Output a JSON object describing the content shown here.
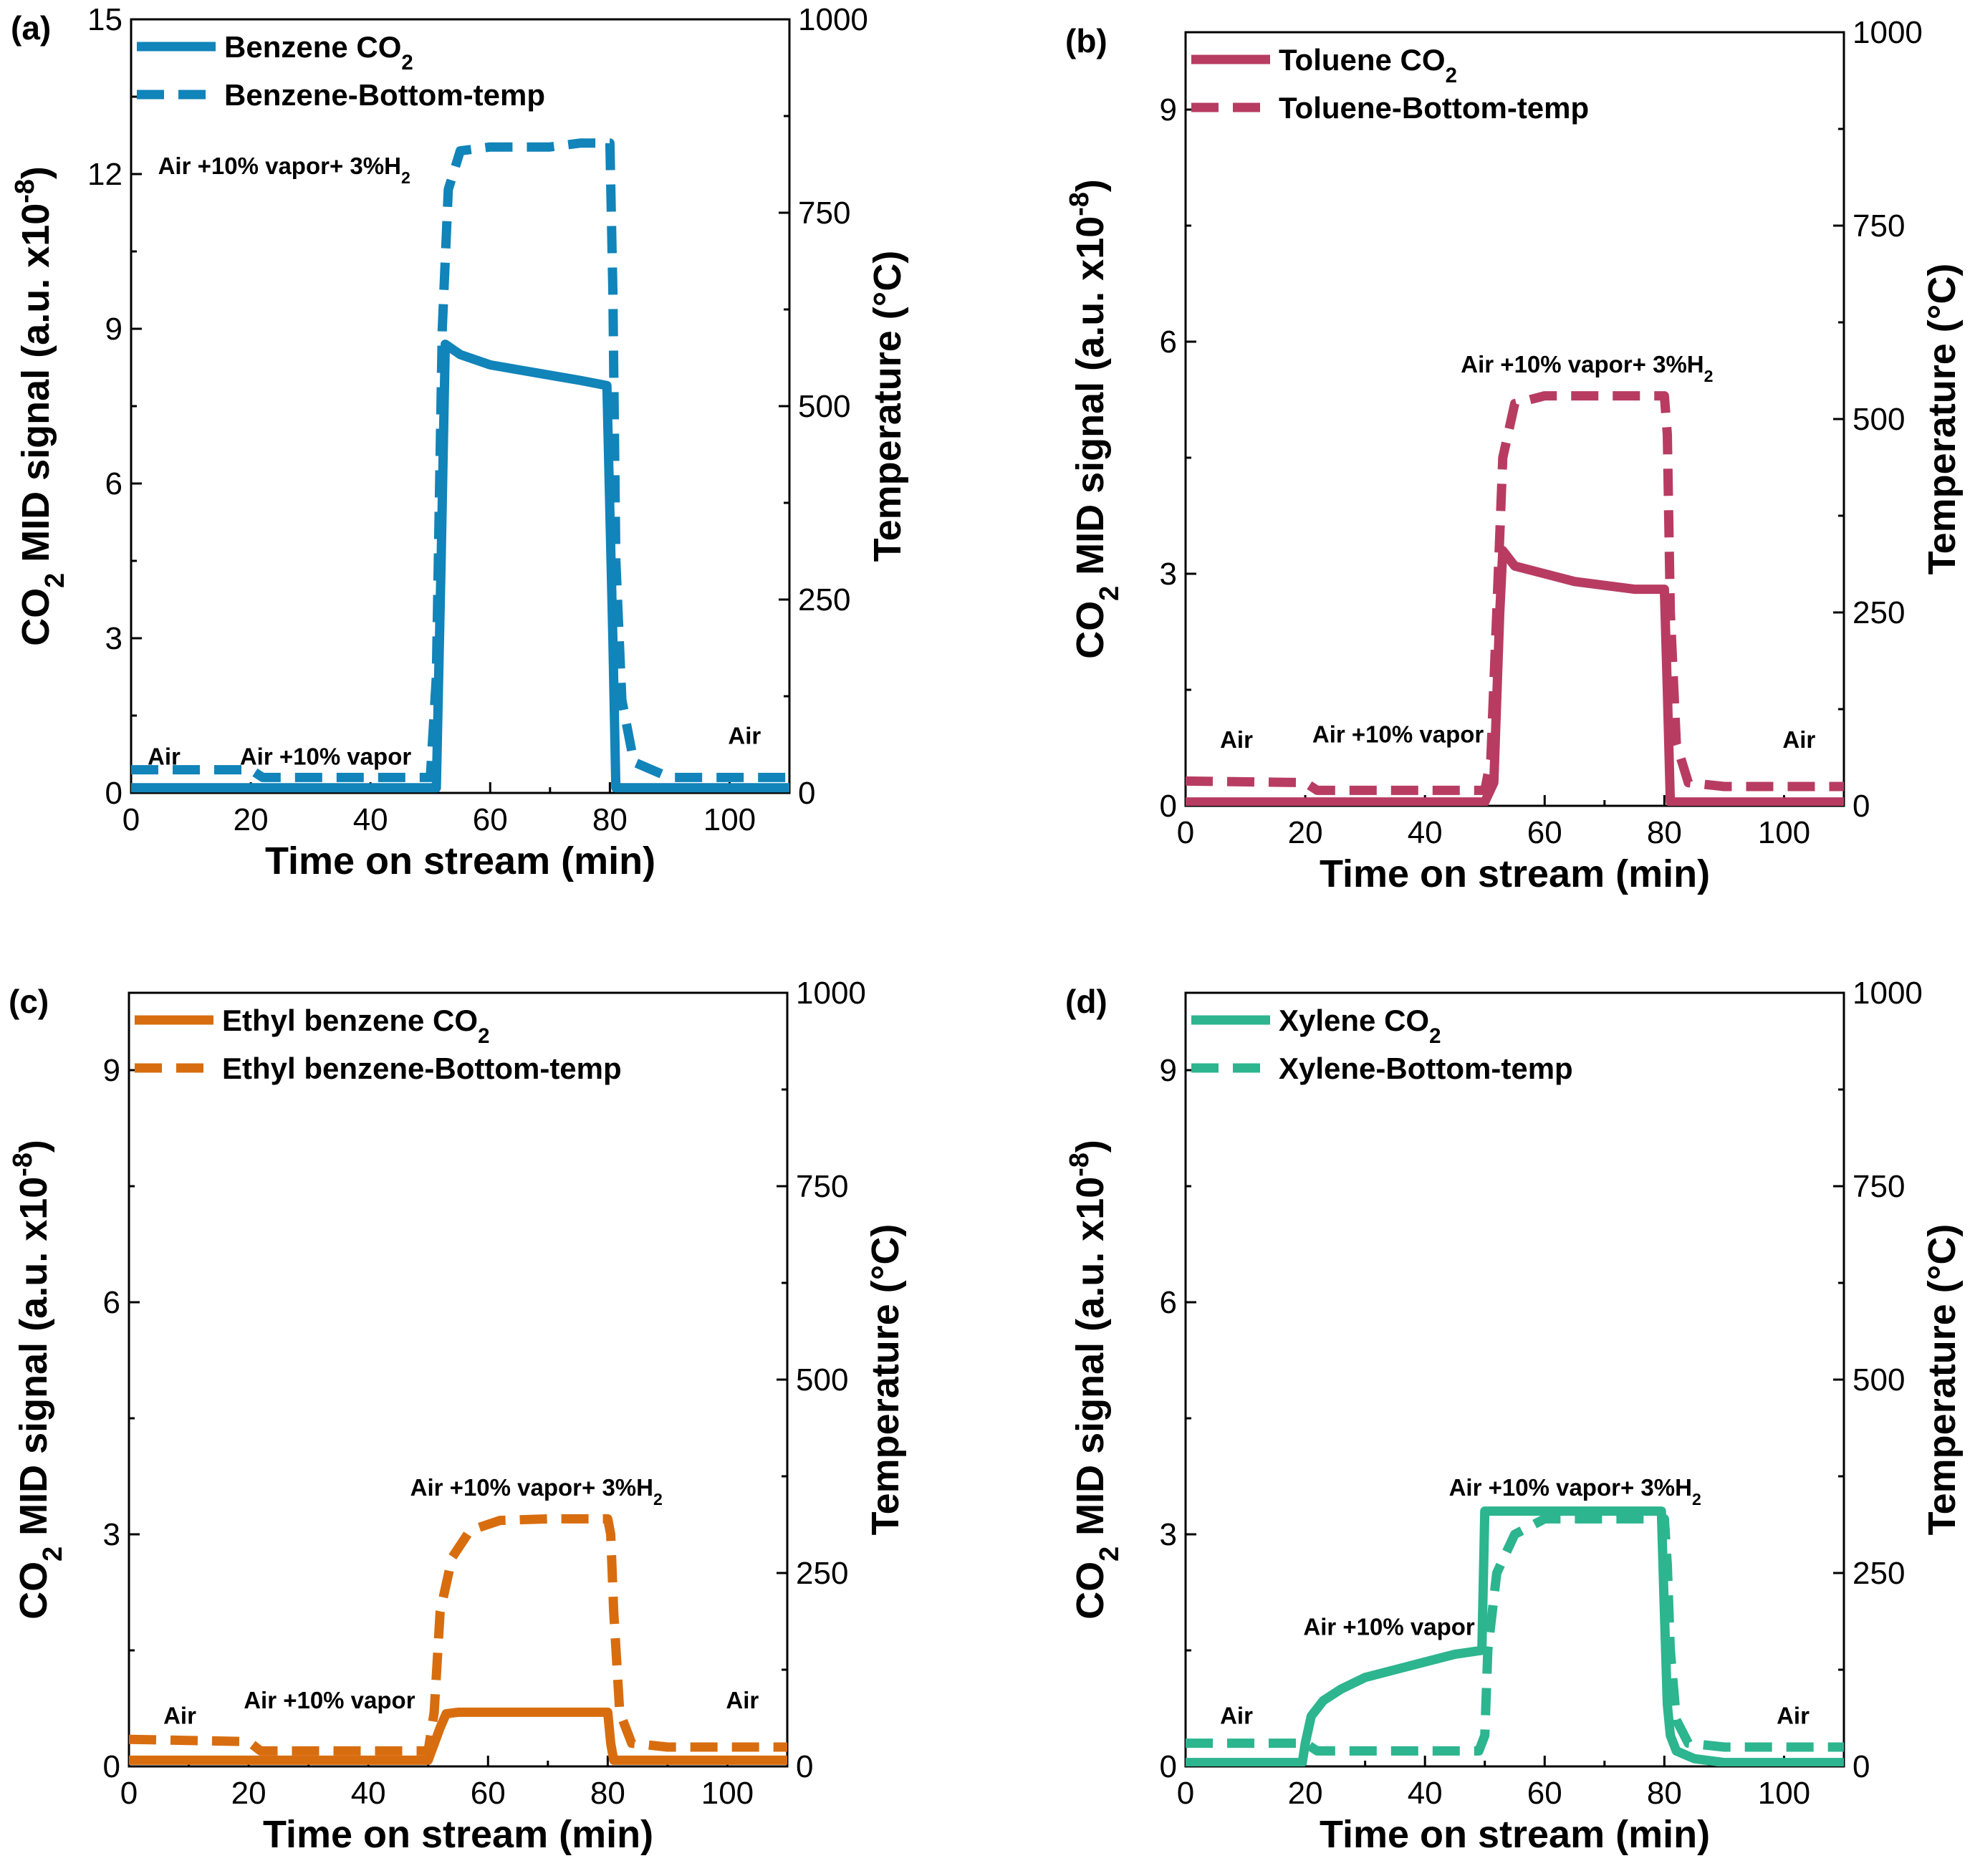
{
  "chart_data": [
    {
      "type": "line",
      "panel_label": "(a)",
      "color": "#1184b9",
      "xlabel": "Time on stream (min)",
      "ylabel_left": "CO2 MID signal (a.u. x10-8)",
      "ylabel_right": "Temperature (°C)",
      "xlim": [
        0,
        110
      ],
      "ylim_left": [
        0,
        15
      ],
      "ylim_right": [
        0,
        1000
      ],
      "xticks": [
        "0",
        "20",
        "40",
        "60",
        "80",
        "100"
      ],
      "yticks_left": [
        "0",
        "3",
        "6",
        "9",
        "12",
        "15"
      ],
      "yticks_right": [
        "0",
        "250",
        "500",
        "750",
        "1000"
      ],
      "legend_co2": "Benzene CO",
      "legend_temp": "Benzene-Bottom-temp",
      "annotations": {
        "air_start": "Air",
        "vapor": "Air +10% vapor",
        "h2": "Air +10% vapor+ 3%H",
        "air_end": "Air"
      },
      "series": [
        {
          "name": "Benzene CO2",
          "axis": "left",
          "style": "solid",
          "x": [
            0,
            51,
            51.8,
            52.5,
            55,
            60,
            65,
            70,
            75,
            79.5,
            80.5,
            81,
            110
          ],
          "y": [
            0.1,
            0.1,
            4.5,
            8.7,
            8.5,
            8.3,
            8.2,
            8.1,
            8.0,
            7.9,
            3.0,
            0.1,
            0.1
          ]
        },
        {
          "name": "Benzene-Bottom-temp",
          "axis": "right",
          "style": "dashed",
          "x": [
            0,
            20,
            22,
            50,
            51,
            52,
            53,
            55,
            60,
            70,
            75,
            80,
            80.5,
            81,
            82,
            84,
            90,
            110
          ],
          "y": [
            30,
            30,
            20,
            20,
            150,
            600,
            780,
            830,
            835,
            835,
            840,
            840,
            650,
            300,
            120,
            40,
            20,
            20
          ]
        }
      ]
    },
    {
      "type": "line",
      "panel_label": "(b)",
      "color": "#b83c62",
      "xlabel": "Time on stream (min)",
      "ylabel_left": "CO2 MID signal (a.u. x10-8)",
      "ylabel_right": "Temperature (°C)",
      "xlim": [
        0,
        110
      ],
      "ylim_left": [
        0,
        10
      ],
      "ylim_right": [
        0,
        1000
      ],
      "xticks": [
        "0",
        "20",
        "40",
        "60",
        "80",
        "100"
      ],
      "yticks_left": [
        "0",
        "3",
        "6",
        "9"
      ],
      "yticks_right": [
        "0",
        "250",
        "500",
        "750",
        "1000"
      ],
      "legend_co2": "Toluene CO",
      "legend_temp": "Toluene-Bottom-temp",
      "annotations": {
        "air_start": "Air",
        "vapor": "Air +10% vapor",
        "h2": "Air +10% vapor+ 3%H",
        "air_end": "Air"
      },
      "series": [
        {
          "name": "Toluene CO2",
          "axis": "left",
          "style": "solid",
          "x": [
            0,
            50,
            51.5,
            52.5,
            53,
            55,
            60,
            65,
            70,
            75,
            80,
            80.5,
            81,
            110
          ],
          "y": [
            0.05,
            0.05,
            0.3,
            2.5,
            3.3,
            3.1,
            3.0,
            2.9,
            2.85,
            2.8,
            2.8,
            1.5,
            0.05,
            0.05
          ]
        },
        {
          "name": "Toluene-Bottom-temp",
          "axis": "right",
          "style": "dashed",
          "x": [
            0,
            20,
            22,
            50,
            51,
            52,
            53,
            55,
            60,
            70,
            80,
            80.5,
            81,
            82,
            84,
            90,
            110
          ],
          "y": [
            32,
            30,
            20,
            20,
            60,
            250,
            450,
            520,
            530,
            530,
            530,
            480,
            250,
            80,
            30,
            25,
            25
          ]
        }
      ]
    },
    {
      "type": "line",
      "panel_label": "(c)",
      "color": "#d86d0f",
      "xlabel": "Time on stream (min)",
      "ylabel_left": "CO2 MID signal (a.u. x10-8)",
      "ylabel_right": "Temperature (°C)",
      "xlim": [
        0,
        110
      ],
      "ylim_left": [
        0,
        10
      ],
      "ylim_right": [
        0,
        1000
      ],
      "xticks": [
        "0",
        "20",
        "40",
        "60",
        "80",
        "100"
      ],
      "yticks_left": [
        "0",
        "3",
        "6",
        "9"
      ],
      "yticks_right": [
        "0",
        "250",
        "500",
        "750",
        "1000"
      ],
      "legend_co2": "Ethyl benzene CO",
      "legend_temp": "Ethyl benzene-Bottom-temp",
      "annotations": {
        "air_start": "Air",
        "vapor": "Air +10% vapor",
        "h2": "Air +10% vapor+ 3%H",
        "air_end": "Air"
      },
      "series": [
        {
          "name": "Ethyl benzene CO2",
          "axis": "left",
          "style": "solid",
          "x": [
            0,
            50,
            52,
            53,
            55,
            60,
            70,
            80,
            80.5,
            81,
            110
          ],
          "y": [
            0.08,
            0.08,
            0.5,
            0.68,
            0.7,
            0.7,
            0.7,
            0.7,
            0.3,
            0.08,
            0.08
          ]
        },
        {
          "name": "Ethyl benzene-Bottom-temp",
          "axis": "right",
          "style": "dashed",
          "x": [
            0,
            20,
            22,
            50,
            51,
            52,
            54,
            57,
            62,
            70,
            80,
            80.5,
            81,
            82,
            84,
            90,
            110
          ],
          "y": [
            35,
            32,
            20,
            20,
            70,
            200,
            270,
            305,
            318,
            320,
            320,
            300,
            200,
            70,
            30,
            25,
            25
          ]
        }
      ]
    },
    {
      "type": "line",
      "panel_label": "(d)",
      "color": "#2cb58f",
      "xlabel": "Time on stream (min)",
      "ylabel_left": "CO2 MID signal (a.u. x10-8)",
      "ylabel_right": "Temperature (°C)",
      "xlim": [
        0,
        110
      ],
      "ylim_left": [
        0,
        10
      ],
      "ylim_right": [
        0,
        1000
      ],
      "xticks": [
        "0",
        "20",
        "40",
        "60",
        "80",
        "100"
      ],
      "yticks_left": [
        "0",
        "3",
        "6",
        "9"
      ],
      "yticks_right": [
        "0",
        "250",
        "500",
        "750",
        "1000"
      ],
      "legend_co2": "Xylene CO",
      "legend_temp": "Xylene-Bottom-temp",
      "annotations": {
        "air_start": "Air",
        "vapor": "Air +10% vapor",
        "h2": "Air +10% vapor+ 3%H",
        "air_end": "Air"
      },
      "series": [
        {
          "name": "Xylene CO2",
          "axis": "left",
          "style": "solid",
          "x": [
            0,
            19.5,
            20,
            21,
            23,
            26,
            30,
            35,
            40,
            45,
            49.5,
            50,
            55,
            60,
            65,
            70,
            75,
            79.5,
            80,
            80.5,
            81,
            82,
            85,
            90,
            110
          ],
          "y": [
            0.05,
            0.05,
            0.3,
            0.65,
            0.85,
            1.0,
            1.15,
            1.25,
            1.35,
            1.45,
            1.5,
            3.3,
            3.3,
            3.3,
            3.3,
            3.3,
            3.3,
            3.3,
            2.0,
            0.8,
            0.4,
            0.2,
            0.1,
            0.05,
            0.05
          ]
        },
        {
          "name": "Xylene-Bottom-temp",
          "axis": "right",
          "style": "dashed",
          "x": [
            0,
            20,
            22,
            49,
            50,
            50.5,
            52,
            55,
            60,
            70,
            80,
            80.5,
            81,
            82,
            84,
            90,
            110
          ],
          "y": [
            30,
            30,
            20,
            20,
            40,
            150,
            250,
            300,
            320,
            320,
            320,
            260,
            150,
            60,
            30,
            25,
            25
          ]
        }
      ]
    }
  ]
}
